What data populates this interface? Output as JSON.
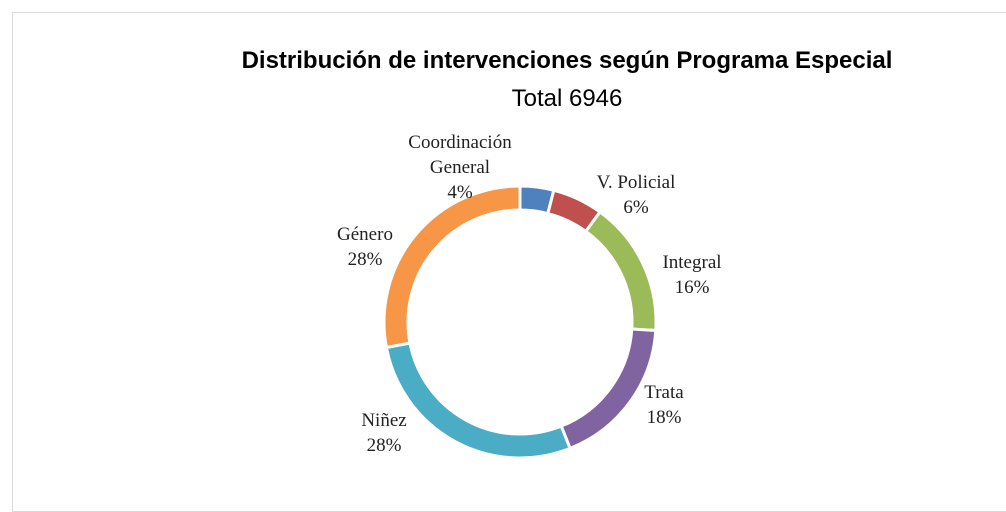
{
  "chart_data": {
    "type": "donut",
    "title": "Distribución de intervenciones según Programa Especial",
    "subtitle": "Total 6946",
    "categories": [
      "Coordinación General",
      "V. Policial",
      "Integral",
      "Trata",
      "Niñez",
      "Género"
    ],
    "values": [
      4,
      6,
      16,
      18,
      28,
      28
    ],
    "value_labels": [
      "4%",
      "6%",
      "16%",
      "18%",
      "28%",
      "28%"
    ],
    "colors": [
      "#4f81bd",
      "#c0504d",
      "#9bbb59",
      "#8064a2",
      "#4bacc6",
      "#f79646"
    ]
  }
}
